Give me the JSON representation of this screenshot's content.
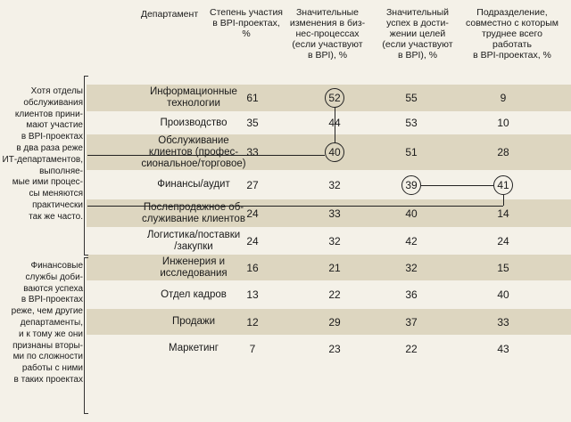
{
  "chart_data": {
    "type": "table",
    "columns": [
      "Департамент",
      "Степень участия\nв BPI-проектах,\n%",
      "Значительные\nизменения в биз-\nнес-процессах\n(если участвуют\nв BPI), %",
      "Значительный\nуспех в дости-\nжении целей\n(если участвуют\nв BPI), %",
      "Подразделение,\nсовместно с которым\nтруднее всего\nработать\nв BPI-проектах, %"
    ],
    "rows": [
      {
        "dept": "Информационные\nтехнологии",
        "values": [
          "61",
          "52",
          "55",
          "9"
        ]
      },
      {
        "dept": "Производство",
        "values": [
          "35",
          "44",
          "53",
          "10"
        ]
      },
      {
        "dept": "Обслуживание\nклиентов (профес-\nсиональное/торговое)",
        "values": [
          "33",
          "40",
          "51",
          "28"
        ]
      },
      {
        "dept": "Финансы/аудит",
        "values": [
          "27",
          "32",
          "39",
          "41"
        ]
      },
      {
        "dept": "Послепродажное об-\nслуживание клиентов",
        "values": [
          "24",
          "33",
          "40",
          "14"
        ]
      },
      {
        "dept": "Логистика/поставки\n/закупки",
        "values": [
          "24",
          "32",
          "42",
          "24"
        ]
      },
      {
        "dept": "Инженерия и\nисследования",
        "values": [
          "16",
          "21",
          "32",
          "15"
        ]
      },
      {
        "dept": "Отдел кадров",
        "values": [
          "13",
          "22",
          "36",
          "40"
        ]
      },
      {
        "dept": "Продажи",
        "values": [
          "12",
          "29",
          "37",
          "33"
        ]
      },
      {
        "dept": "Маркетинг",
        "values": [
          "7",
          "23",
          "22",
          "43"
        ]
      }
    ],
    "highlighted": [
      {
        "row": 0,
        "col": 1
      },
      {
        "row": 2,
        "col": 1
      },
      {
        "row": 3,
        "col": 2
      },
      {
        "row": 3,
        "col": 3
      }
    ]
  },
  "notes": {
    "it_note": "Хотя отделы\nобслуживания\nклиентов прини-\nмают участие\nв BPI-проектах\nв два раза реже\nИТ-департаментов,\nвыполняе-\nмые ими процес-\nсы меняются\nпрактически\nтак же часто.",
    "finance_note": "Финансовые\nслужбы доби-\nваются успеха\nв BPI-проектах\nреже, чем другие\nдепартаменты,\nи к тому же они\nпризнаны вторы-\nми по сложности\nработы с ними\nв таких проектах"
  },
  "colors": {
    "background": "#f4f1e8",
    "shade": "#ddd6c0",
    "text": "#1a1a1a"
  }
}
